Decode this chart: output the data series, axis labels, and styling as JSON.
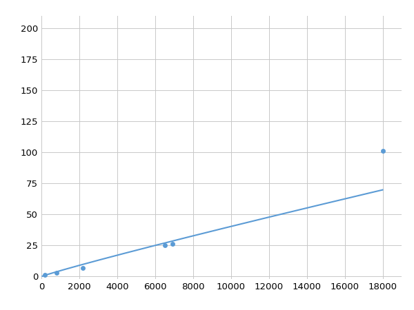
{
  "x_data": [
    200,
    800,
    2200,
    6500,
    6900,
    18000
  ],
  "y_data": [
    1.5,
    3.0,
    7.0,
    25.0,
    26.5,
    101.0
  ],
  "line_color": "#5b9bd5",
  "marker_color": "#5b9bd5",
  "marker_size": 5,
  "linewidth": 1.5,
  "xlim": [
    0,
    19000
  ],
  "ylim": [
    -2,
    210
  ],
  "xticks": [
    0,
    2000,
    4000,
    6000,
    8000,
    10000,
    12000,
    14000,
    16000,
    18000
  ],
  "yticks": [
    0,
    25,
    50,
    75,
    100,
    125,
    150,
    175,
    200
  ],
  "grid_color": "#c8c8c8",
  "background_color": "#ffffff",
  "tick_fontsize": 9.5,
  "power_a": 0.012,
  "power_b": 1.55
}
